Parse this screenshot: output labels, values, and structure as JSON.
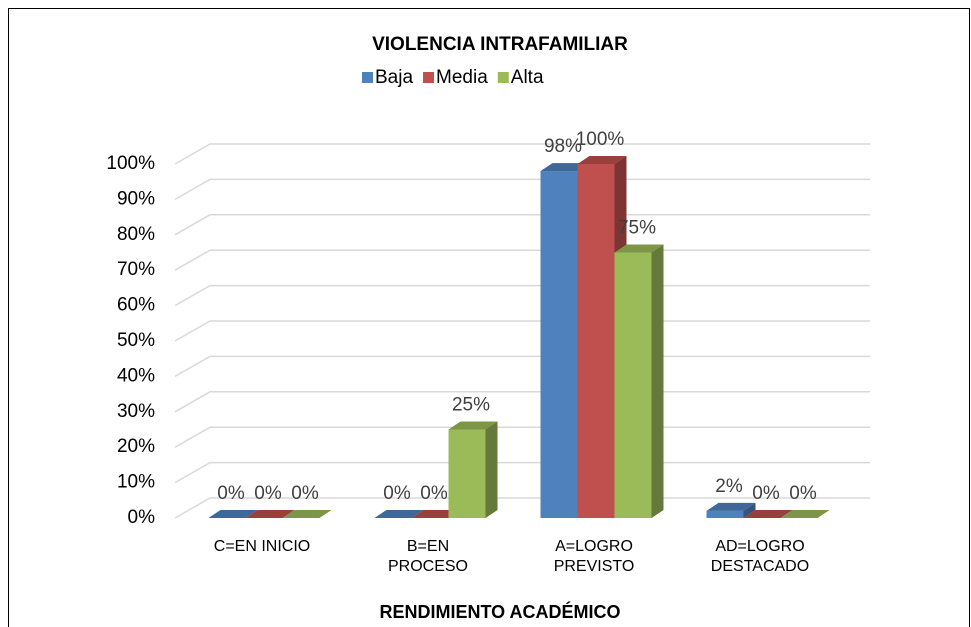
{
  "chart_data": {
    "type": "bar3d",
    "title": "VIOLENCIA INTRAFAMILIAR",
    "x_label": "RENDIMIENTO ACADÉMICO",
    "categories": [
      "C=EN INICIO",
      "B=EN\nPROCESO",
      "A=LOGRO\nPREVISTO",
      "AD=LOGRO\nDESTACADO"
    ],
    "series": [
      {
        "name": "Baja",
        "color": "#4f81bd",
        "values": [
          0,
          0,
          98,
          2
        ],
        "value_labels": [
          "0%",
          "0%",
          "98%",
          "2%"
        ]
      },
      {
        "name": "Media",
        "color": "#c0504d",
        "values": [
          0,
          0,
          100,
          0
        ],
        "value_labels": [
          "0%",
          "0%",
          "100%",
          "0%"
        ]
      },
      {
        "name": "Alta",
        "color": "#9bbb59",
        "values": [
          0,
          25,
          75,
          0
        ],
        "value_labels": [
          "0%",
          "25%",
          "75%",
          "0%"
        ]
      }
    ],
    "ylim": [
      0,
      100
    ],
    "yticks": [
      {
        "value": 0,
        "label": "0%"
      },
      {
        "value": 10,
        "label": "10%"
      },
      {
        "value": 20,
        "label": "20%"
      },
      {
        "value": 30,
        "label": "30%"
      },
      {
        "value": 40,
        "label": "40%"
      },
      {
        "value": 50,
        "label": "50%"
      },
      {
        "value": 60,
        "label": "60%"
      },
      {
        "value": 70,
        "label": "70%"
      },
      {
        "value": 80,
        "label": "80%"
      },
      {
        "value": 90,
        "label": "90%"
      },
      {
        "value": 100,
        "label": "100%"
      }
    ],
    "grid": true,
    "legend": "top"
  }
}
